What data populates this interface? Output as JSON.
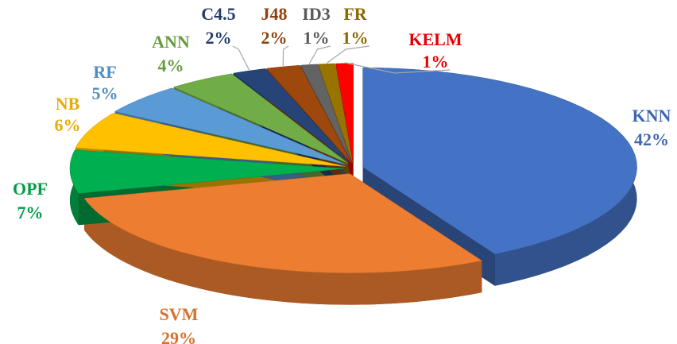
{
  "chart_data": {
    "type": "pie",
    "categories": [
      "KNN",
      "SVM",
      "OPF",
      "NB",
      "RF",
      "ANN",
      "C4.5",
      "J48",
      "ID3",
      "FR",
      "KELM"
    ],
    "values": [
      42,
      29,
      7,
      6,
      5,
      4,
      2,
      2,
      1,
      1,
      1
    ],
    "value_labels": [
      "42%",
      "29%",
      "7%",
      "6%",
      "5%",
      "4%",
      "2%",
      "2%",
      "1%",
      "1%",
      "1%"
    ],
    "colors": [
      "#4472c4",
      "#ed7d31",
      "#00b050",
      "#ffc000",
      "#5b9bd5",
      "#70ad47",
      "#264478",
      "#9e480e",
      "#636363",
      "#997300",
      "#ff0000"
    ]
  }
}
